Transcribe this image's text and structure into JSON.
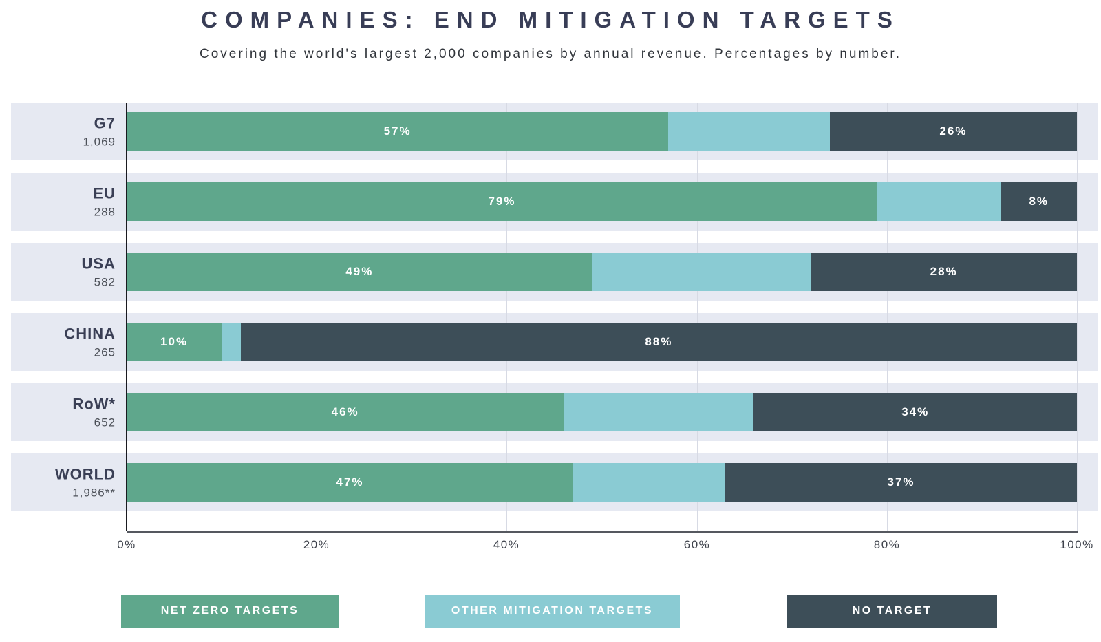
{
  "chart_data": {
    "type": "bar",
    "orientation": "horizontal",
    "stacked": true,
    "title": "COMPANIES: END MITIGATION TARGETS",
    "subtitle": "Covering the world's largest 2,000 companies by annual revenue. Percentages by number.",
    "unit": "percent",
    "xlim": [
      0,
      100
    ],
    "x_ticks": [
      "0%",
      "20%",
      "40%",
      "60%",
      "80%",
      "100%"
    ],
    "grid": true,
    "legend_position": "bottom",
    "categories": [
      {
        "label": "G7",
        "count": "1,069"
      },
      {
        "label": "EU",
        "count": "288"
      },
      {
        "label": "USA",
        "count": "582"
      },
      {
        "label": "CHINA",
        "count": "265"
      },
      {
        "label": "RoW*",
        "count": "652"
      },
      {
        "label": "WORLD",
        "count": "1,986**"
      }
    ],
    "series": [
      {
        "name": "NET ZERO TARGETS",
        "color": "#5FA78C",
        "values": [
          57,
          79,
          49,
          10,
          46,
          47
        ],
        "value_labels": [
          "57%",
          "79%",
          "49%",
          "10%",
          "46%",
          "47%"
        ]
      },
      {
        "name": "OTHER MITIGATION TARGETS",
        "color": "#8ACBD3",
        "values": [
          17,
          13,
          23,
          2,
          20,
          16
        ],
        "value_labels": [
          "",
          "",
          "",
          "",
          "",
          ""
        ]
      },
      {
        "name": "NO TARGET",
        "color": "#3D4E58",
        "values": [
          26,
          8,
          28,
          88,
          34,
          37
        ],
        "value_labels": [
          "26%",
          "8%",
          "28%",
          "88%",
          "34%",
          "37%"
        ]
      }
    ]
  },
  "colors": {
    "background": "#FFFFFF",
    "row_band": "#E6E9F2",
    "title_text": "#383D56",
    "axis_line": "#55585F",
    "y_axis_line": "#1A1B20",
    "gridline": "#D7DAE4",
    "bar_label_text": "#FFFFFF"
  }
}
